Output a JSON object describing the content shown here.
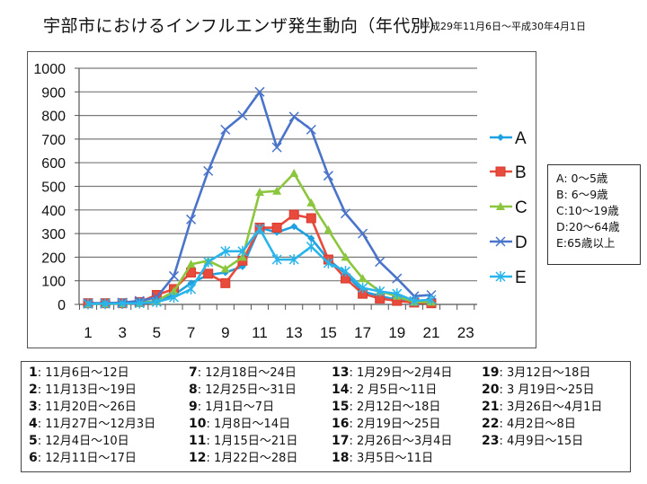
{
  "header": {
    "title": "宇部市におけるインフルエンザ発生動向（年代別）",
    "period": "平成29年11月6日～平成30年4月1日"
  },
  "chart_data": {
    "type": "line",
    "title": "宇部市におけるインフルエンザ発生動向（年代別）",
    "xlabel": "",
    "ylabel": "",
    "x": [
      1,
      2,
      3,
      4,
      5,
      6,
      7,
      8,
      9,
      10,
      11,
      12,
      13,
      14,
      15,
      16,
      17,
      18,
      19,
      20,
      21
    ],
    "x_ticks": [
      "1",
      "3",
      "5",
      "7",
      "9",
      "11",
      "13",
      "15",
      "17",
      "19",
      "21",
      "23"
    ],
    "x_range": [
      1,
      23
    ],
    "y_ticks": [
      "0",
      "100",
      "200",
      "300",
      "400",
      "500",
      "600",
      "700",
      "800",
      "900",
      "1000"
    ],
    "ylim": [
      0,
      1000
    ],
    "grid": true,
    "legend_position": "right",
    "series": [
      {
        "name": "A",
        "color": "#1fa0e0",
        "marker": "diamond",
        "values": [
          5,
          5,
          5,
          8,
          15,
          40,
          90,
          125,
          135,
          160,
          325,
          305,
          330,
          280,
          190,
          130,
          55,
          35,
          20,
          10,
          10
        ]
      },
      {
        "name": "B",
        "color": "#e84a3c",
        "marker": "square",
        "values": [
          5,
          5,
          5,
          10,
          40,
          65,
          135,
          130,
          90,
          185,
          325,
          325,
          380,
          365,
          190,
          110,
          45,
          25,
          15,
          8,
          5
        ]
      },
      {
        "name": "C",
        "color": "#8cc63e",
        "marker": "triangle",
        "values": [
          2,
          2,
          3,
          5,
          15,
          55,
          170,
          185,
          150,
          200,
          475,
          480,
          555,
          430,
          315,
          200,
          110,
          55,
          35,
          10,
          10
        ]
      },
      {
        "name": "D",
        "color": "#4a74c9",
        "marker": "x",
        "values": [
          5,
          5,
          8,
          15,
          30,
          120,
          360,
          565,
          740,
          800,
          900,
          665,
          795,
          740,
          545,
          385,
          300,
          180,
          110,
          35,
          40
        ]
      },
      {
        "name": "E",
        "color": "#2ab5ea",
        "marker": "asterisk",
        "values": [
          2,
          3,
          4,
          5,
          10,
          30,
          65,
          180,
          225,
          225,
          320,
          190,
          190,
          245,
          175,
          140,
          70,
          55,
          45,
          15,
          20
        ]
      }
    ]
  },
  "age_groups": [
    "A:  0～5歳",
    "B:  6～9歳",
    "C:10～19歳",
    "D:20～64歳",
    "E:65歳以上"
  ],
  "weeks": [
    {
      "no": "1",
      "range": "11月6日～12日"
    },
    {
      "no": "2",
      "range": "11月13日～19日"
    },
    {
      "no": "3",
      "range": "11月20日～26日"
    },
    {
      "no": "4",
      "range": "11月27日～12月3日"
    },
    {
      "no": "5",
      "range": "12月4日～10日"
    },
    {
      "no": "6",
      "range": "12月11日～17日"
    },
    {
      "no": "7",
      "range": "12月18日～24日"
    },
    {
      "no": "8",
      "range": "12月25日～31日"
    },
    {
      "no": "9",
      "range": "1月1日～7日"
    },
    {
      "no": "10",
      "range": "1月8日～14日"
    },
    {
      "no": "11",
      "range": "1月15日～21日"
    },
    {
      "no": "12",
      "range": "1月22日～28日"
    },
    {
      "no": "13",
      "range": "1月29日～2月4日"
    },
    {
      "no": "14",
      "range": "2 月5日～11日"
    },
    {
      "no": "15",
      "range": "2月12日～18日"
    },
    {
      "no": "16",
      "range": "2月19日～25日"
    },
    {
      "no": "17",
      "range": "2月26日～3月4日"
    },
    {
      "no": "18",
      "range": " 3月5日～11日"
    },
    {
      "no": "19",
      "range": "3月12日～18日"
    },
    {
      "no": "20",
      "range": "3 月19日～25日"
    },
    {
      "no": "21",
      "range": "3月26日～4月1日"
    },
    {
      "no": "22",
      "range": "4月2日～8日"
    },
    {
      "no": "23",
      "range": "4月9日～15日"
    }
  ]
}
